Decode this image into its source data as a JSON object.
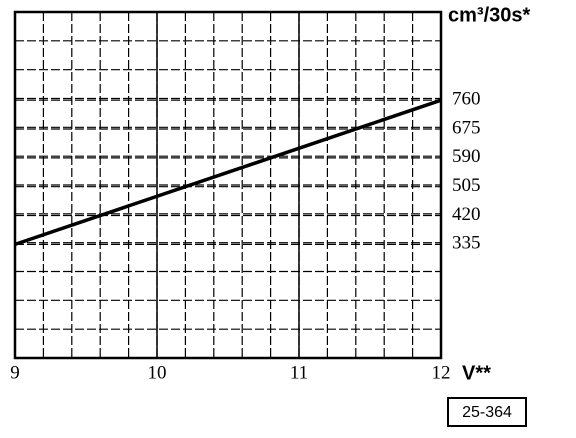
{
  "chart_data": {
    "type": "line",
    "y_label": "cm³/30s*",
    "x_label": "V**",
    "code": "25-364",
    "x": [
      9,
      12
    ],
    "series": [
      {
        "color": "#000000",
        "values": [
          335,
          760
        ]
      }
    ],
    "xlim": [
      9,
      12
    ],
    "xticks": [
      9,
      10,
      11,
      12
    ],
    "ylim": [
      0,
      1020
    ],
    "yticks": [
      335,
      420,
      505,
      590,
      675,
      760
    ],
    "grid": true
  }
}
